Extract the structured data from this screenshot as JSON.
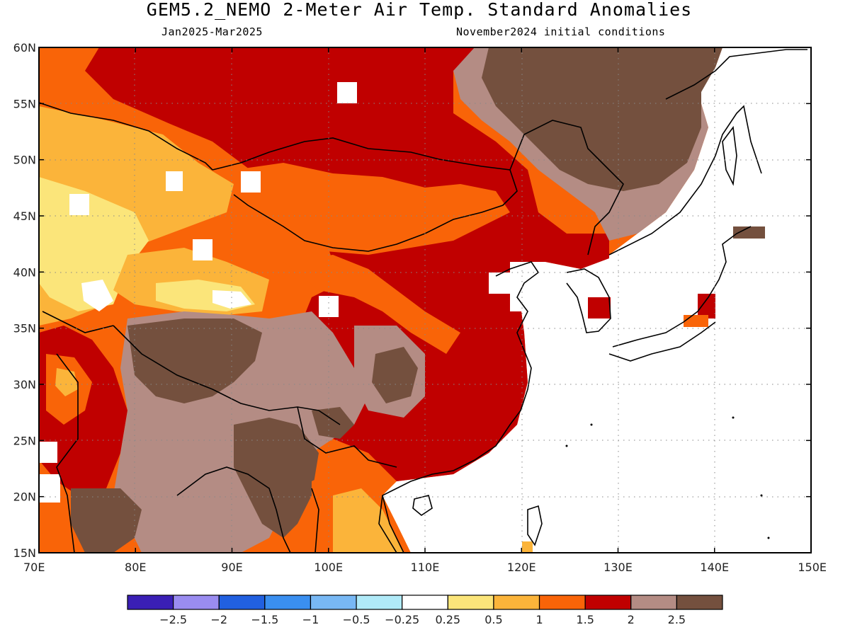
{
  "title": "GEM5.2_NEMO 2-Meter Air Temp. Standard Anomalies",
  "subtitle_left": "Jan2025-Mar2025",
  "subtitle_right": "November2024 initial conditions",
  "lat_ticks": [
    "15N",
    "20N",
    "25N",
    "30N",
    "35N",
    "40N",
    "45N",
    "50N",
    "55N",
    "60N"
  ],
  "lon_ticks": [
    "70E",
    "80E",
    "90E",
    "100E",
    "110E",
    "120E",
    "130E",
    "140E",
    "150E"
  ],
  "colorbar": {
    "colors": [
      "#3a1fb5",
      "#9a8cf0",
      "#2160e0",
      "#3a8ff0",
      "#78b8f4",
      "#b0eaf8",
      "#ffffff",
      "#fbe57a",
      "#fbb43a",
      "#f96408",
      "#c00000",
      "#b48c84",
      "#74503e"
    ],
    "labels": [
      "-2.5",
      "-2",
      "-1.5",
      "-1",
      "-0.5",
      "-0.25",
      "0.25",
      "0.5",
      "1",
      "1.5",
      "2",
      "2.5"
    ]
  }
}
